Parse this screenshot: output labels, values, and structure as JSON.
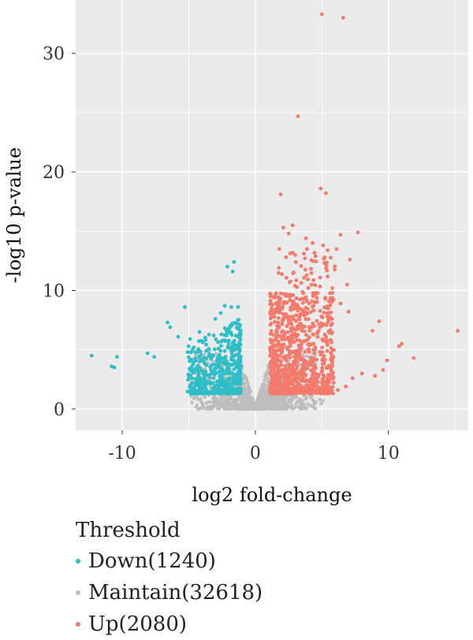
{
  "chart_data": {
    "type": "scatter",
    "title": "",
    "xlabel": "log2 fold-change",
    "ylabel": "-log10 p-value",
    "xlim": [
      -13.5,
      16
    ],
    "ylim": [
      -1.8,
      34.5
    ],
    "x_ticks": [
      -10,
      0,
      10
    ],
    "y_ticks": [
      0,
      10,
      20,
      30
    ],
    "x_tick_labels": [
      "-10",
      "0",
      "10"
    ],
    "y_tick_labels": [
      "0",
      "10",
      "20",
      "30"
    ],
    "grid": true,
    "legend_position": "bottom-left",
    "legend_title": "Threshold",
    "series": [
      {
        "name": "Down(1240)",
        "color": "#2fbec7",
        "count": 1240,
        "highlight_points": [
          [
            -12.3,
            4.5
          ],
          [
            -10.8,
            3.6
          ],
          [
            -10.6,
            3.5
          ],
          [
            -10.4,
            4.4
          ],
          [
            -8.1,
            4.7
          ],
          [
            -7.6,
            4.4
          ],
          [
            -6.6,
            7.3
          ],
          [
            -6.4,
            6.9
          ],
          [
            -5.8,
            6.1
          ],
          [
            -5.3,
            8.6
          ],
          [
            -4.9,
            5.9
          ],
          [
            -4.5,
            4.8
          ],
          [
            -2.1,
            12.0
          ],
          [
            -1.6,
            12.4
          ],
          [
            -1.7,
            11.6
          ],
          [
            -2.3,
            8.7
          ],
          [
            -1.8,
            8.6
          ],
          [
            -1.3,
            8.6
          ],
          [
            -3.0,
            7.6
          ],
          [
            -2.6,
            8.1
          ],
          [
            -4.2,
            6.5
          ]
        ]
      },
      {
        "name": "Maintain(32618)",
        "color": "#bdbdbd",
        "count": 32618
      },
      {
        "name": "Up(2080)",
        "color": "#f47a6c",
        "count": 2080,
        "highlight_points": [
          [
            5.0,
            33.3
          ],
          [
            6.6,
            33.0
          ],
          [
            3.2,
            24.7
          ],
          [
            4.9,
            18.6
          ],
          [
            5.3,
            18.2
          ],
          [
            1.9,
            18.1
          ],
          [
            2.1,
            15.3
          ],
          [
            2.8,
            15.5
          ],
          [
            2.5,
            14.8
          ],
          [
            3.8,
            14.4
          ],
          [
            6.4,
            14.7
          ],
          [
            7.7,
            14.9
          ],
          [
            1.8,
            13.5
          ],
          [
            3.0,
            13.0
          ],
          [
            4.3,
            14.0
          ],
          [
            5.1,
            13.8
          ],
          [
            6.1,
            13.5
          ],
          [
            7.1,
            12.6
          ],
          [
            6.9,
            10.5
          ],
          [
            5.8,
            9.8
          ],
          [
            6.4,
            8.9
          ],
          [
            7.0,
            8.2
          ],
          [
            8.8,
            6.6
          ],
          [
            9.3,
            7.4
          ],
          [
            10.8,
            5.3
          ],
          [
            11.0,
            5.5
          ],
          [
            11.9,
            4.3
          ],
          [
            9.9,
            4.1
          ],
          [
            9.6,
            3.3
          ],
          [
            9.0,
            2.8
          ],
          [
            15.2,
            6.6
          ],
          [
            8.0,
            3.0
          ],
          [
            7.3,
            2.6
          ],
          [
            6.8,
            1.9
          ],
          [
            6.2,
            1.6
          ]
        ]
      }
    ]
  }
}
